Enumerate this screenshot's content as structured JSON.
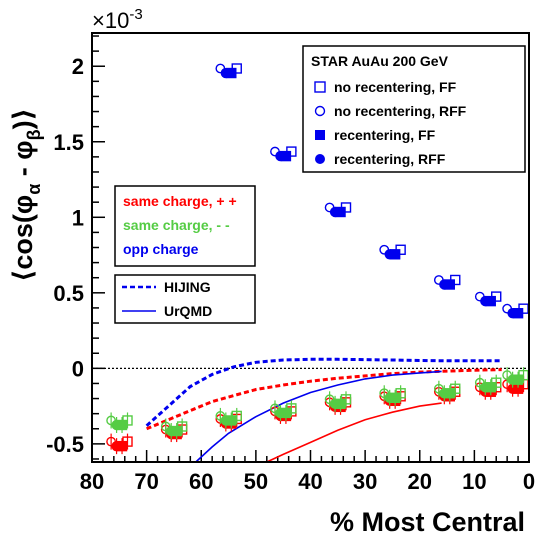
{
  "chart_data": {
    "type": "scatter",
    "title": "",
    "xlabel": "% Most Central",
    "ylabel": "⟨cos(φα - φβ)⟩",
    "ylabel_parts": {
      "pre": "⟨cos(φ",
      "sub1": "α",
      "mid": " - φ",
      "sub2": "β",
      "post": ")⟩"
    },
    "y_multiplier": "×10",
    "y_multiplier_exp": "-3",
    "xlim": [
      80,
      0
    ],
    "ylim": [
      -0.62,
      2.22
    ],
    "x_ticks": [
      80,
      70,
      60,
      50,
      40,
      30,
      20,
      10,
      0
    ],
    "y_ticks": [
      -0.5,
      0,
      0.5,
      1,
      1.5,
      2
    ],
    "y_tick_labels": [
      "-0.5",
      "0",
      "0.5",
      "1",
      "1.5",
      "2"
    ],
    "x_tick_labels": [
      "80",
      "70",
      "60",
      "50",
      "40",
      "30",
      "20",
      "10",
      "0"
    ],
    "grid": false,
    "legend_main": {
      "title": "STAR  AuAu 200 GeV",
      "entries": [
        {
          "label": "no recentering, FF",
          "marker": "open-square"
        },
        {
          "label": "no recentering, RFF",
          "marker": "open-circle"
        },
        {
          "label": "recentering, FF",
          "marker": "filled-square"
        },
        {
          "label": "recentering, RFF",
          "marker": "filled-circle"
        }
      ]
    },
    "legend_charge": {
      "entries": [
        {
          "label": "same charge, + +",
          "color": "#ff0000"
        },
        {
          "label": "same charge, - -",
          "color": "#55cc44"
        },
        {
          "label": "opp charge",
          "color": "#0000ee"
        }
      ]
    },
    "legend_models": {
      "entries": [
        {
          "label": "HIJING",
          "style": "dashed"
        },
        {
          "label": "UrQMD",
          "style": "solid"
        }
      ]
    },
    "series": [
      {
        "charge": "opp",
        "color": "#0000ee",
        "points": [
          {
            "x": 55,
            "y": 1.97
          },
          {
            "x": 45,
            "y": 1.42
          },
          {
            "x": 35,
            "y": 1.05
          },
          {
            "x": 25,
            "y": 0.77
          },
          {
            "x": 15,
            "y": 0.57
          },
          {
            "x": 7.5,
            "y": 0.46
          },
          {
            "x": 2.5,
            "y": 0.38
          }
        ]
      },
      {
        "charge": "same-pp",
        "color": "#ff0000",
        "points": [
          {
            "x": 75,
            "y": -0.5
          },
          {
            "x": 65,
            "y": -0.42
          },
          {
            "x": 55,
            "y": -0.35
          },
          {
            "x": 45,
            "y": -0.3
          },
          {
            "x": 35,
            "y": -0.24
          },
          {
            "x": 25,
            "y": -0.2
          },
          {
            "x": 15,
            "y": -0.17
          },
          {
            "x": 7.5,
            "y": -0.14
          },
          {
            "x": 2.5,
            "y": -0.12
          }
        ]
      },
      {
        "charge": "same-mm",
        "color": "#55cc44",
        "points": [
          {
            "x": 75,
            "y": -0.36
          },
          {
            "x": 65,
            "y": -0.4
          },
          {
            "x": 55,
            "y": -0.33
          },
          {
            "x": 45,
            "y": -0.28
          },
          {
            "x": 35,
            "y": -0.22
          },
          {
            "x": 25,
            "y": -0.18
          },
          {
            "x": 15,
            "y": -0.15
          },
          {
            "x": 7.5,
            "y": -0.11
          },
          {
            "x": 2.5,
            "y": -0.06
          }
        ]
      }
    ],
    "model_curves": [
      {
        "model": "HIJING",
        "charge": "opp",
        "style": "dashed",
        "color": "#0000ee",
        "points": [
          [
            70,
            -0.38
          ],
          [
            66,
            -0.25
          ],
          [
            62,
            -0.12
          ],
          [
            58,
            -0.04
          ],
          [
            54,
            0.01
          ],
          [
            50,
            0.04
          ],
          [
            45,
            0.055
          ],
          [
            40,
            0.06
          ],
          [
            35,
            0.06
          ],
          [
            30,
            0.058
          ],
          [
            25,
            0.055
          ],
          [
            20,
            0.052
          ],
          [
            15,
            0.05
          ],
          [
            8,
            0.05
          ],
          [
            5,
            0.05
          ]
        ]
      },
      {
        "model": "HIJING",
        "charge": "same",
        "style": "dashed",
        "color": "#ff0000",
        "points": [
          [
            70,
            -0.4
          ],
          [
            66,
            -0.34
          ],
          [
            62,
            -0.28
          ],
          [
            58,
            -0.22
          ],
          [
            54,
            -0.18
          ],
          [
            50,
            -0.14
          ],
          [
            45,
            -0.11
          ],
          [
            40,
            -0.085
          ],
          [
            35,
            -0.065
          ],
          [
            30,
            -0.05
          ],
          [
            25,
            -0.035
          ],
          [
            20,
            -0.025
          ],
          [
            15,
            -0.018
          ],
          [
            10,
            -0.012
          ],
          [
            5,
            -0.008
          ]
        ]
      },
      {
        "model": "UrQMD",
        "charge": "opp",
        "style": "solid",
        "color": "#0000ee",
        "points": [
          [
            61,
            -0.62
          ],
          [
            58,
            -0.52
          ],
          [
            55,
            -0.43
          ],
          [
            50,
            -0.32
          ],
          [
            45,
            -0.23
          ],
          [
            40,
            -0.16
          ],
          [
            35,
            -0.11
          ],
          [
            30,
            -0.07
          ],
          [
            25,
            -0.045
          ],
          [
            20,
            -0.03
          ],
          [
            16,
            -0.02
          ]
        ]
      },
      {
        "model": "UrQMD",
        "charge": "same",
        "style": "solid",
        "color": "#ff0000",
        "points": [
          [
            48,
            -0.62
          ],
          [
            45,
            -0.57
          ],
          [
            40,
            -0.49
          ],
          [
            35,
            -0.41
          ],
          [
            30,
            -0.34
          ],
          [
            25,
            -0.29
          ],
          [
            20,
            -0.25
          ],
          [
            16,
            -0.23
          ]
        ]
      }
    ]
  }
}
